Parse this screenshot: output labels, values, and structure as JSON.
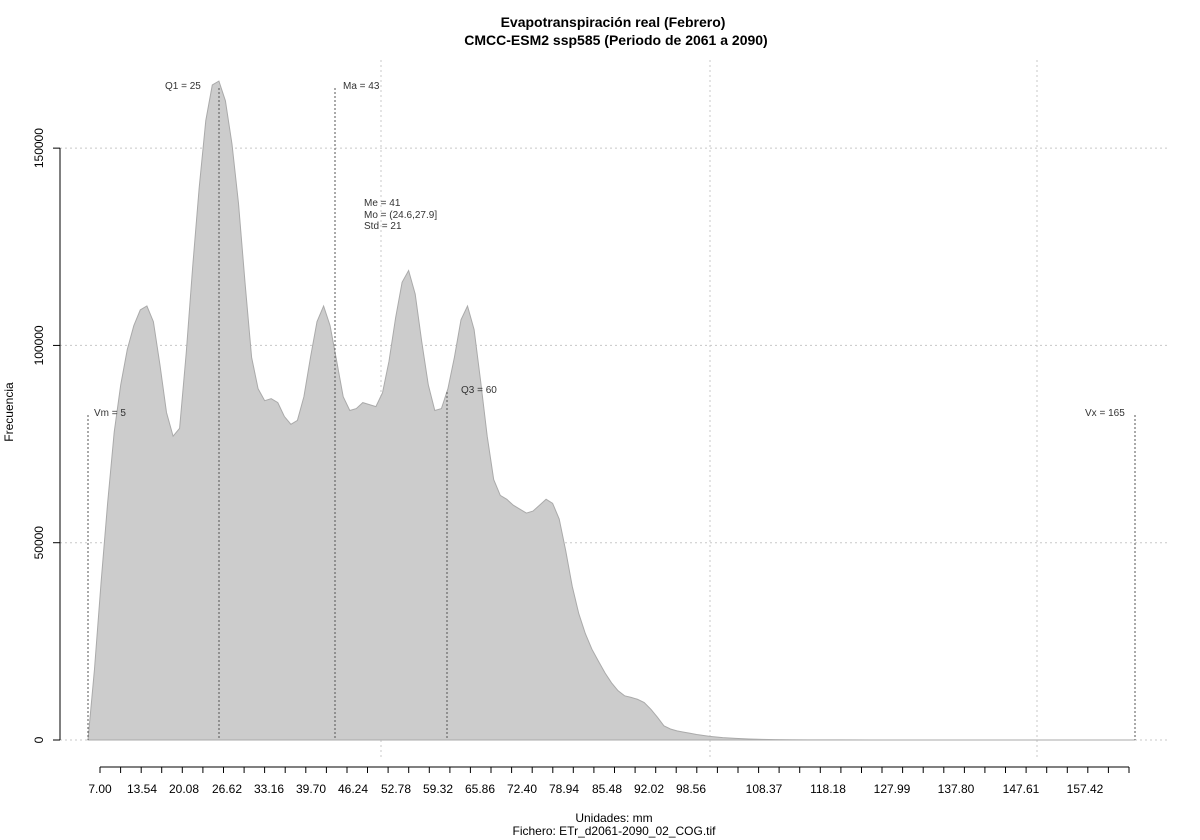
{
  "chart_data": {
    "type": "area",
    "title": "Evapotranspiración real (Febrero)",
    "subtitle": "CMCC-ESM2 ssp585 (Periodo de 2061 a 2090)",
    "xlabel": "Unidades: mm",
    "caption": "Fichero: ETr_d2061-2090_02_COG.tif",
    "ylabel": "Frecuencia",
    "xlim": [
      5,
      165
    ],
    "ylim": [
      0,
      166000
    ],
    "grid": true,
    "x_tick_labels": [
      "7.00",
      "13.54",
      "20.08",
      "26.62",
      "33.16",
      "39.70",
      "46.24",
      "52.78",
      "59.32",
      "65.86",
      "72.40",
      "78.94",
      "85.48",
      "92.02",
      "98.56",
      "108.37",
      "118.18",
      "127.99",
      "137.80",
      "147.61",
      "157.42"
    ],
    "y_ticks": [
      0,
      50000,
      100000,
      150000
    ],
    "y_tick_labels": [
      "0",
      "50000",
      "100000",
      "150000"
    ],
    "series": [
      {
        "x": [
          5,
          6,
          7,
          8,
          9,
          10,
          11,
          12,
          13,
          14,
          15,
          16,
          17,
          18,
          19,
          20,
          21,
          22,
          23,
          24,
          25,
          26,
          27,
          28,
          29,
          30,
          31,
          32,
          33,
          34,
          35,
          36,
          37,
          38,
          39,
          40,
          41,
          42,
          43,
          44,
          45,
          46,
          47,
          48,
          49,
          50,
          51,
          52,
          53,
          54,
          55,
          56,
          57,
          58,
          59,
          60,
          61,
          62,
          63,
          64,
          65,
          66,
          67,
          68,
          69,
          70,
          71,
          72,
          73,
          74,
          75,
          76,
          77,
          78,
          79,
          80,
          81,
          82,
          83,
          84,
          85,
          86,
          87,
          88,
          89,
          90,
          91,
          92,
          93,
          94,
          95,
          96,
          97,
          98,
          100,
          102,
          104,
          106,
          108,
          110,
          112,
          115,
          120,
          125,
          130,
          140,
          150,
          160,
          165
        ],
        "y": [
          0,
          18000,
          40000,
          60000,
          78000,
          90000,
          99000,
          105000,
          109000,
          110000,
          106000,
          95000,
          83000,
          77000,
          79000,
          98000,
          120000,
          140000,
          157000,
          166000,
          167000,
          162000,
          151000,
          136000,
          116000,
          97000,
          89000,
          86000,
          86500,
          85500,
          82000,
          80000,
          81000,
          87000,
          97000,
          106000,
          110000,
          105000,
          96000,
          87000,
          83500,
          84000,
          85500,
          85000,
          84500,
          88000,
          96000,
          107000,
          116000,
          119000,
          113000,
          101000,
          90000,
          83500,
          84000,
          89000,
          97000,
          106500,
          110000,
          104000,
          91000,
          77000,
          66000,
          62000,
          61000,
          59500,
          58500,
          57500,
          58000,
          59500,
          61000,
          60000,
          56000,
          48000,
          39000,
          32000,
          27000,
          23000,
          20000,
          17000,
          14500,
          12500,
          11200,
          10800,
          10300,
          9500,
          7800,
          5800,
          3600,
          2800,
          2300,
          2000,
          1700,
          1400,
          900,
          600,
          400,
          250,
          150,
          100,
          60,
          30,
          15,
          8,
          5,
          2,
          1,
          0,
          0
        ]
      }
    ],
    "annotations": {
      "vm": "Vm = 5",
      "q1": "Q1 = 25",
      "ma": "Ma = 43",
      "stats": [
        "Me = 41",
        "Mo = (24.6,27.9]",
        "Std = 21"
      ],
      "q3": "Q3 = 60",
      "vx": "Vx = 165"
    }
  }
}
